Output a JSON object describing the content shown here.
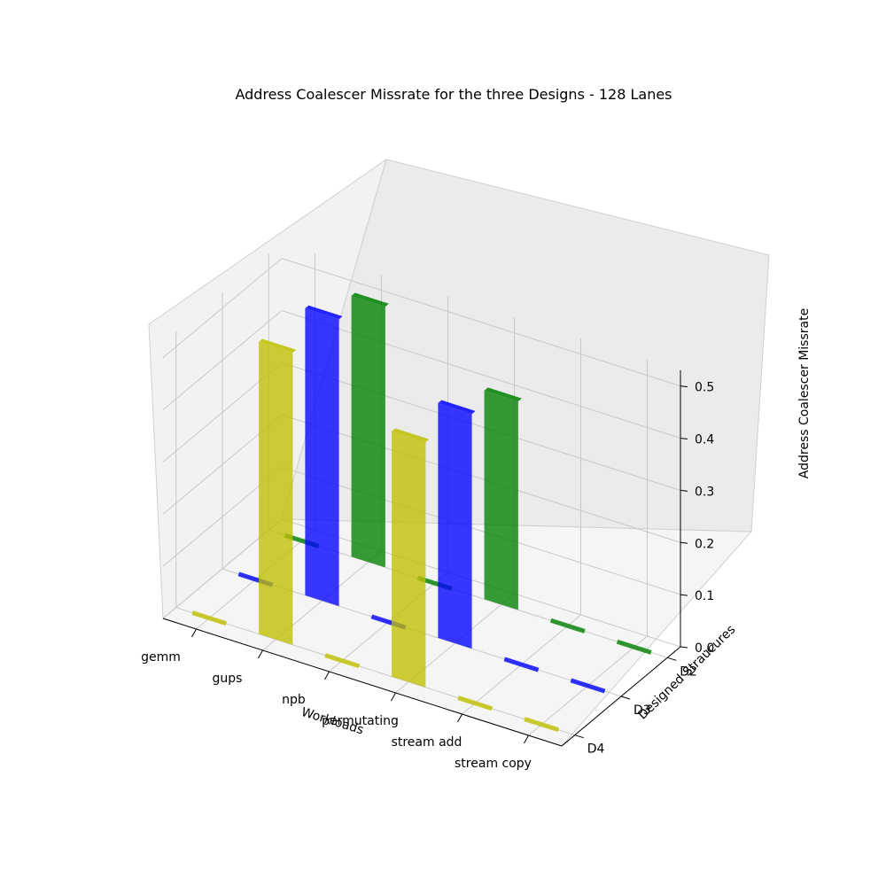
{
  "chart_data": {
    "type": "bar3d",
    "title": "Address Coalescer Missrate for the three Designs - 128 Lanes",
    "xlabel": "Workloads",
    "ylabel": "Designed Straucures",
    "zlabel": "Address Coalescer Missrate",
    "categories": [
      "gemm",
      "gups",
      "npb",
      "permutating",
      "stream add",
      "stream copy"
    ],
    "zticks": [
      "0.0",
      "0.1",
      "0.2",
      "0.3",
      "0.4",
      "0.5"
    ],
    "zlim": [
      0,
      0.53
    ],
    "grid": true,
    "series": [
      {
        "name": "D2",
        "color": "#008000",
        "values": [
          0.0,
          0.5,
          0.0,
          0.4,
          0.0,
          0.0
        ]
      },
      {
        "name": "D3",
        "color": "#0000ff",
        "values": [
          0.0,
          0.55,
          0.0,
          0.45,
          0.0,
          0.0
        ]
      },
      {
        "name": "D4",
        "color": "#bfbf00",
        "values": [
          0.0,
          0.56,
          0.0,
          0.47,
          0.0,
          0.0
        ]
      }
    ]
  }
}
